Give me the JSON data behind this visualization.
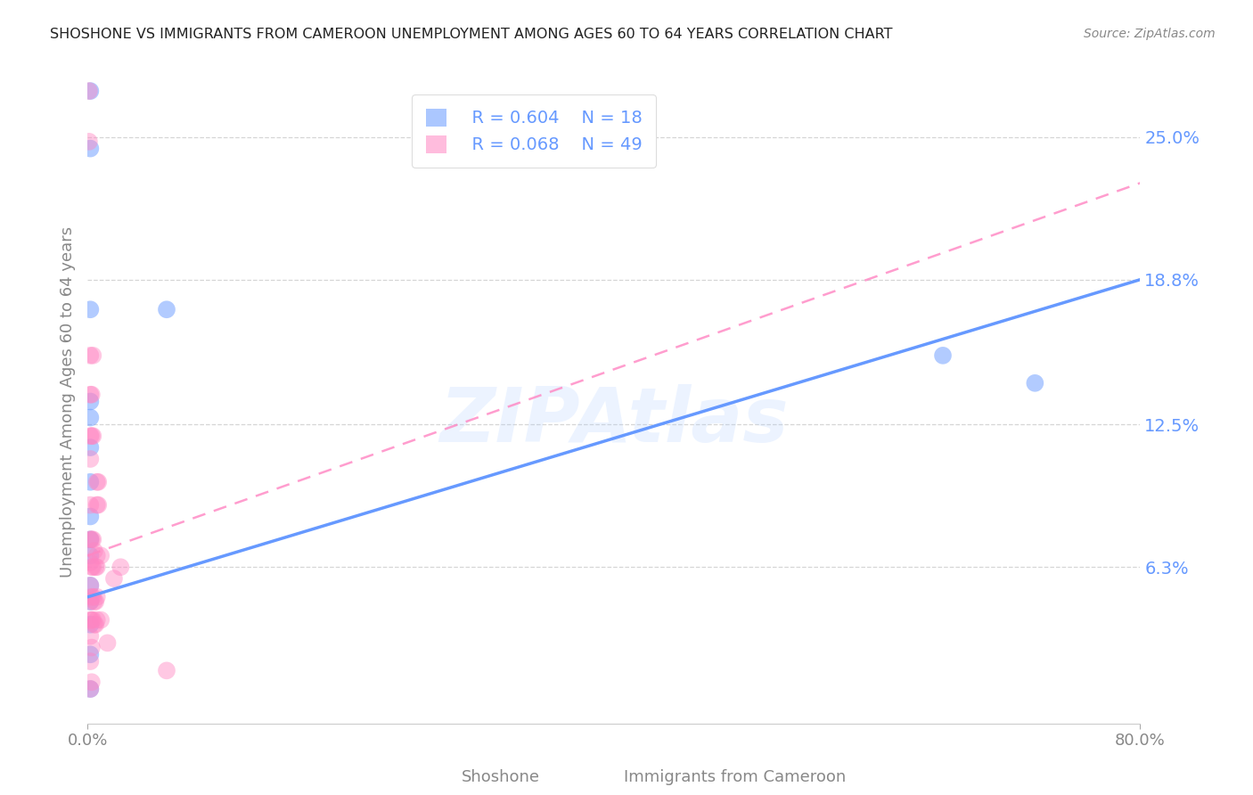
{
  "title": "SHOSHONE VS IMMIGRANTS FROM CAMEROON UNEMPLOYMENT AMONG AGES 60 TO 64 YEARS CORRELATION CHART",
  "source": "Source: ZipAtlas.com",
  "ylabel": "Unemployment Among Ages 60 to 64 years",
  "ytick_labels": [
    "6.3%",
    "12.5%",
    "18.8%",
    "25.0%"
  ],
  "ytick_values": [
    0.063,
    0.125,
    0.188,
    0.25
  ],
  "xlim": [
    0.0,
    0.8
  ],
  "ylim": [
    -0.005,
    0.275
  ],
  "watermark": "ZIPAtlas",
  "legend_blue_R": "R = 0.604",
  "legend_blue_N": "N = 18",
  "legend_pink_R": "R = 0.068",
  "legend_pink_N": "N = 49",
  "shoshone_color": "#6699ff",
  "cameroon_color": "#ff85c2",
  "shoshone_points": [
    [
      0.002,
      0.27
    ],
    [
      0.002,
      0.245
    ],
    [
      0.002,
      0.175
    ],
    [
      0.002,
      0.135
    ],
    [
      0.002,
      0.128
    ],
    [
      0.002,
      0.115
    ],
    [
      0.002,
      0.1
    ],
    [
      0.002,
      0.085
    ],
    [
      0.002,
      0.075
    ],
    [
      0.002,
      0.068
    ],
    [
      0.002,
      0.055
    ],
    [
      0.002,
      0.048
    ],
    [
      0.002,
      0.038
    ],
    [
      0.002,
      0.025
    ],
    [
      0.002,
      0.01
    ],
    [
      0.06,
      0.175
    ],
    [
      0.65,
      0.155
    ],
    [
      0.72,
      0.143
    ]
  ],
  "cameroon_points": [
    [
      0.001,
      0.27
    ],
    [
      0.001,
      0.248
    ],
    [
      0.002,
      0.155
    ],
    [
      0.002,
      0.138
    ],
    [
      0.002,
      0.12
    ],
    [
      0.002,
      0.11
    ],
    [
      0.002,
      0.09
    ],
    [
      0.002,
      0.075
    ],
    [
      0.002,
      0.065
    ],
    [
      0.002,
      0.055
    ],
    [
      0.002,
      0.048
    ],
    [
      0.002,
      0.04
    ],
    [
      0.002,
      0.033
    ],
    [
      0.002,
      0.022
    ],
    [
      0.002,
      0.01
    ],
    [
      0.003,
      0.138
    ],
    [
      0.003,
      0.12
    ],
    [
      0.003,
      0.075
    ],
    [
      0.003,
      0.063
    ],
    [
      0.003,
      0.05
    ],
    [
      0.003,
      0.04
    ],
    [
      0.003,
      0.028
    ],
    [
      0.003,
      0.013
    ],
    [
      0.004,
      0.155
    ],
    [
      0.004,
      0.12
    ],
    [
      0.004,
      0.075
    ],
    [
      0.004,
      0.063
    ],
    [
      0.004,
      0.05
    ],
    [
      0.004,
      0.04
    ],
    [
      0.005,
      0.07
    ],
    [
      0.005,
      0.048
    ],
    [
      0.005,
      0.038
    ],
    [
      0.006,
      0.063
    ],
    [
      0.006,
      0.048
    ],
    [
      0.006,
      0.038
    ],
    [
      0.007,
      0.1
    ],
    [
      0.007,
      0.09
    ],
    [
      0.007,
      0.068
    ],
    [
      0.007,
      0.063
    ],
    [
      0.007,
      0.05
    ],
    [
      0.007,
      0.04
    ],
    [
      0.008,
      0.1
    ],
    [
      0.008,
      0.09
    ],
    [
      0.01,
      0.068
    ],
    [
      0.01,
      0.04
    ],
    [
      0.015,
      0.03
    ],
    [
      0.02,
      0.058
    ],
    [
      0.025,
      0.063
    ],
    [
      0.06,
      0.018
    ]
  ],
  "shoshone_line_x": [
    0.0,
    0.8
  ],
  "shoshone_line_y": [
    0.05,
    0.188
  ],
  "cameroon_line_x": [
    0.0,
    0.8
  ],
  "cameroon_line_y": [
    0.068,
    0.23
  ],
  "background_color": "#ffffff",
  "grid_color": "#cccccc",
  "title_color": "#222222",
  "ytick_color": "#6699ff"
}
